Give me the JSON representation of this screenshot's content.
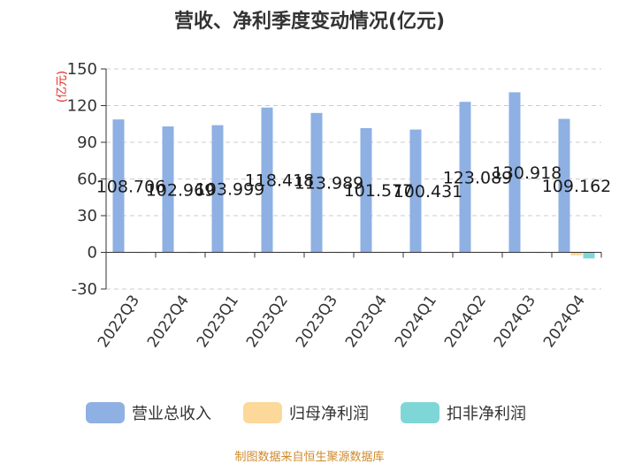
{
  "title": "营收、净利季度变动情况(亿元)",
  "source": "制图数据来自恒生聚源数据库",
  "chart_data": {
    "type": "bar",
    "ylabel": "(亿元)",
    "ylim": [
      -30,
      150
    ],
    "yticks": [
      -30,
      0,
      30,
      60,
      90,
      120,
      150
    ],
    "grid": true,
    "legend_position": "bottom",
    "categories": [
      "2022Q3",
      "2022Q4",
      "2023Q1",
      "2023Q2",
      "2023Q3",
      "2023Q4",
      "2024Q1",
      "2024Q2",
      "2024Q3",
      "2024Q4"
    ],
    "series": [
      {
        "name": "营业总收入",
        "color": "#8eb0e3",
        "values": [
          108.706,
          102.969,
          103.999,
          118.418,
          113.989,
          101.577,
          100.431,
          123.089,
          130.918,
          109.162
        ],
        "labels": [
          "108.706",
          "102.969",
          "103.999",
          "118.418",
          "113.989",
          "101.577",
          "100.431",
          "123.089",
          "130.918",
          "109.162"
        ]
      },
      {
        "name": "归母净利润",
        "color": "#fcd89a",
        "values": [
          0.3,
          0.2,
          0.3,
          0.4,
          0.3,
          0.5,
          0.3,
          0.4,
          0.3,
          -2.5
        ]
      },
      {
        "name": "扣非净利润",
        "color": "#7fd6d7",
        "values": [
          0.2,
          0.1,
          0.2,
          0.3,
          0.2,
          0.4,
          0.2,
          0.3,
          0.2,
          -5.0
        ]
      }
    ]
  }
}
